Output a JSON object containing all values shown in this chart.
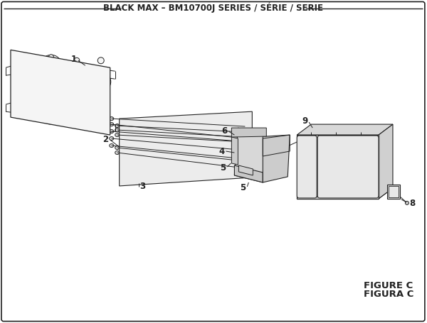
{
  "title": "BLACK MAX – BM10700J SERIES / SÉRIE / SERIE",
  "figure_label": "FIGURE C",
  "figura_label": "FIGURA C",
  "bg_color": "#ffffff",
  "line_color": "#222222",
  "title_fontsize": 8.5,
  "label_fontsize": 8.5,
  "figure_fontsize": 9.5
}
